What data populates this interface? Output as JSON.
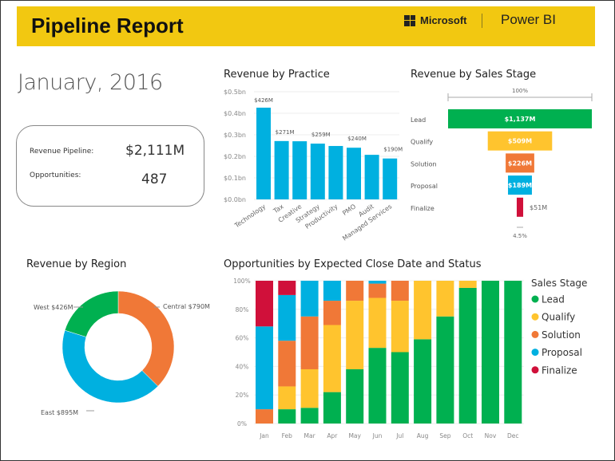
{
  "header": {
    "title": "Pipeline Report",
    "brand": "Microsoft",
    "product": "Power BI"
  },
  "date": "January, 2016",
  "kpis": [
    {
      "label": "Revenue Pipeline:",
      "value": "$2,111M"
    },
    {
      "label": "Opportunities:",
      "value": "487"
    }
  ],
  "colors": {
    "lead": "#00B050",
    "qualify": "#FFC42E",
    "solution": "#F07837",
    "proposal": "#00B0E0",
    "finalize": "#D0103A",
    "bar": "#00B0E0",
    "header": "#F2C811"
  },
  "chart_data": [
    {
      "type": "bar",
      "title": "Revenue by Practice",
      "categories": [
        "Technology",
        "Tax",
        "Creative",
        "Strategy",
        "Productivity",
        "PMO",
        "Audit",
        "Managed Services"
      ],
      "values": [
        426,
        271,
        270,
        259,
        248,
        240,
        207,
        190
      ],
      "data_labels": [
        "$426M",
        "$271M",
        "",
        "$259M",
        "",
        "$240M",
        "",
        "$190M"
      ],
      "ylim": [
        0,
        0.5
      ],
      "yticks": [
        "$0.0bn",
        "$0.1bn",
        "$0.2bn",
        "$0.3bn",
        "$0.4bn",
        "$0.5bn"
      ],
      "grid": true
    },
    {
      "type": "funnel",
      "title": "Revenue by Sales Stage",
      "categories": [
        "Lead",
        "Qualify",
        "Solution",
        "Proposal",
        "Finalize"
      ],
      "values": [
        1137,
        509,
        226,
        189,
        51
      ],
      "data_labels": [
        "$1,137M",
        "$509M",
        "$226M",
        "$189M",
        "$51M"
      ],
      "top_label": "100%",
      "bottom_label": "4.5%"
    },
    {
      "type": "pie",
      "title": "Revenue by Region",
      "donut": true,
      "categories": [
        "Central",
        "East",
        "West"
      ],
      "values": [
        790,
        895,
        426
      ],
      "data_labels": [
        "Central $790M",
        "East $895M",
        "West $426M"
      ]
    },
    {
      "type": "bar",
      "stacked": "100%",
      "title": "Opportunities by Expected Close Date and Status",
      "categories": [
        "Jan",
        "Feb",
        "Mar",
        "Apr",
        "May",
        "Jun",
        "Jul",
        "Aug",
        "Sep",
        "Oct",
        "Nov",
        "Dec"
      ],
      "yticks": [
        "0%",
        "20%",
        "40%",
        "60%",
        "80%",
        "100%"
      ],
      "ylim": [
        0,
        100
      ],
      "legend_title": "Sales Stage",
      "legend": "right",
      "series": [
        {
          "name": "Lead",
          "values": [
            0,
            10,
            11,
            22,
            38,
            53,
            50,
            59,
            75,
            95,
            100,
            100
          ]
        },
        {
          "name": "Qualify",
          "values": [
            0,
            16,
            27,
            47,
            48,
            35,
            36,
            41,
            25,
            5,
            0,
            0
          ]
        },
        {
          "name": "Solution",
          "values": [
            10,
            32,
            37,
            17,
            14,
            10,
            14,
            0,
            0,
            0,
            0,
            0
          ]
        },
        {
          "name": "Proposal",
          "values": [
            58,
            32,
            25,
            14,
            0,
            2,
            0,
            0,
            0,
            0,
            0,
            0
          ]
        },
        {
          "name": "Finalize",
          "values": [
            32,
            10,
            0,
            0,
            0,
            0,
            0,
            0,
            0,
            0,
            0,
            0
          ]
        }
      ]
    }
  ]
}
